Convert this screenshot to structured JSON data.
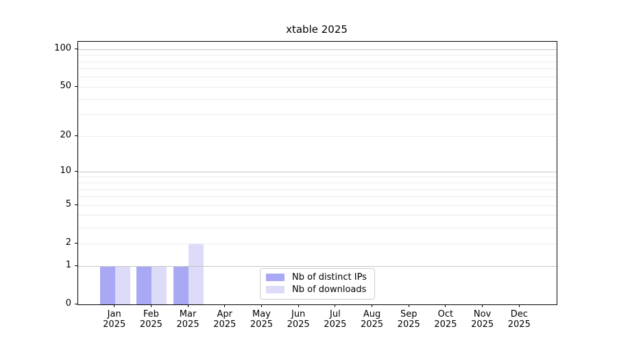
{
  "chart_data": {
    "type": "bar",
    "title": "xtable 2025",
    "categories": [
      "Jan 2025",
      "Feb 2025",
      "Mar 2025",
      "Apr 2025",
      "May 2025",
      "Jun 2025",
      "Jul 2025",
      "Aug 2025",
      "Sep 2025",
      "Oct 2025",
      "Nov 2025",
      "Dec 2025"
    ],
    "series": [
      {
        "name": "Nb of distinct IPs",
        "color": "#a8a8f5",
        "values": [
          1,
          1,
          1,
          0,
          0,
          0,
          0,
          0,
          0,
          0,
          0,
          0
        ]
      },
      {
        "name": "Nb of downloads",
        "color": "#dcdcf8",
        "values": [
          1,
          1,
          2,
          0,
          0,
          0,
          0,
          0,
          0,
          0,
          0,
          0
        ]
      }
    ],
    "xlabel": "",
    "ylabel": "",
    "y_scale": "log1p",
    "y_ticks": [
      0,
      1,
      2,
      5,
      10,
      20,
      50,
      100
    ],
    "ylim": [
      0,
      115
    ],
    "grid": {
      "on": true,
      "decade_lines": [
        1,
        10,
        100
      ],
      "minor_lines": [
        2,
        3,
        4,
        5,
        6,
        7,
        8,
        9,
        20,
        30,
        40,
        50,
        60,
        70,
        80,
        90
      ],
      "decade_color": "#c4c4c4",
      "minor_color": "#ececec"
    },
    "legend": {
      "position": "lower center",
      "entries": [
        "Nb of distinct IPs",
        "Nb of downloads"
      ]
    },
    "colors": {
      "spine": "#000000",
      "background": "#ffffff",
      "text": "#000000"
    }
  }
}
